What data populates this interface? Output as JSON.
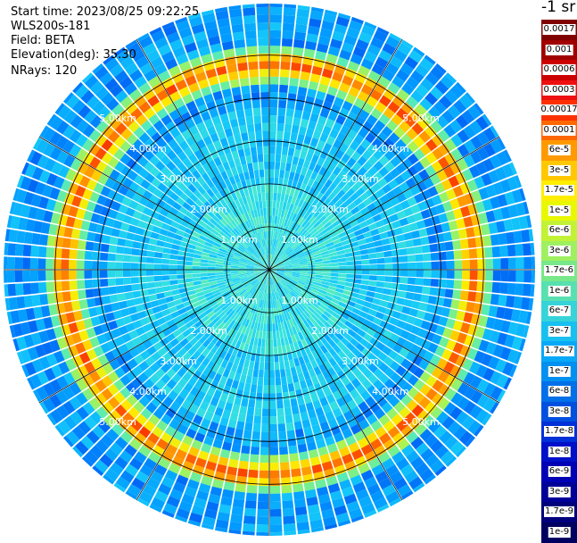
{
  "info": {
    "start_time": "Start time: 2023/08/25 09:22:25",
    "instrument": "WLS200s-181",
    "field": "Field: BETA",
    "elevation": "Elevation(deg): 35.30",
    "nrays": "NRays: 120"
  },
  "colorbar": {
    "unit_label": "-1 sr",
    "labels": [
      "0.0017",
      "0.001",
      "0.0006",
      "0.0003",
      "0.00017",
      "0.0001",
      "6e-5",
      "3e-5",
      "1.7e-5",
      "1e-5",
      "6e-6",
      "3e-6",
      "1.7e-6",
      "1e-6",
      "6e-7",
      "3e-7",
      "1.7e-7",
      "1e-7",
      "6e-8",
      "3e-8",
      "1.7e-8",
      "1e-8",
      "6e-9",
      "3e-9",
      "1.7e-9",
      "1e-9"
    ],
    "colors": [
      "#800000",
      "#a00000",
      "#cc0000",
      "#ee1010",
      "#ff3000",
      "#ff6800",
      "#ff9a00",
      "#ffc800",
      "#ffee00",
      "#e8f800",
      "#c2f236",
      "#9ef060",
      "#78e88a",
      "#58e0b0",
      "#36d4d8",
      "#18c0f0",
      "#08a8f8",
      "#0090f0",
      "#0070e8",
      "#0050e0",
      "#0030d8",
      "#0010c8",
      "#0000b4",
      "#000098",
      "#00007c",
      "#000060"
    ]
  },
  "chart_data": {
    "type": "polar-ppi",
    "quantity": "BETA",
    "unit": "-1 sr",
    "n_rays": 120,
    "elevation_deg": 35.3,
    "range_labels": [
      "1.00km",
      "2.00km",
      "3.00km",
      "4.00km",
      "5.00km"
    ],
    "ring_values_km": [
      1,
      2,
      3,
      4,
      5
    ],
    "max_range_km": 6.2,
    "spoke_angles_deg": [
      0,
      30,
      60,
      90,
      120,
      150,
      180,
      210,
      240,
      270,
      300,
      330
    ],
    "color_scale": "log",
    "color_range": [
      1e-09,
      0.0017
    ],
    "bright_ring_km": 4.8
  }
}
